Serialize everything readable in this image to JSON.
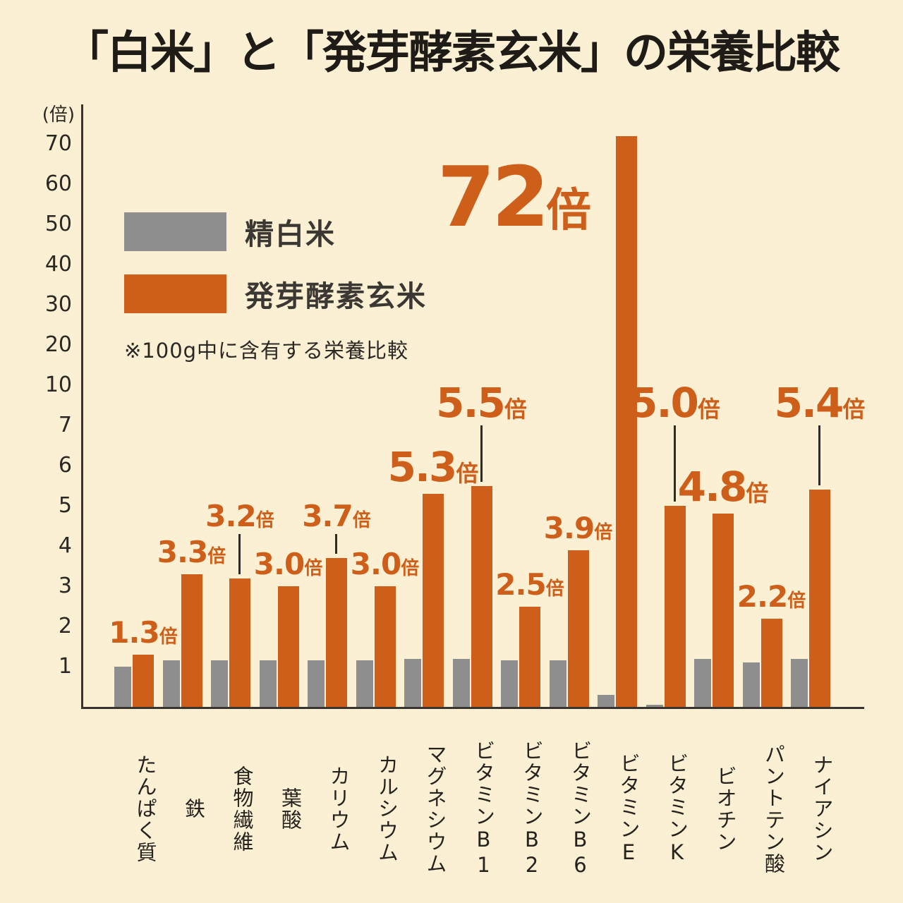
{
  "page": {
    "title": "「白米」と「発芽酵素玄米」の栄養比較"
  },
  "y_axis": {
    "unit_label": "(倍)"
  },
  "legend": {
    "series1": "精白米",
    "series2": "発芽酵素玄米",
    "note": "※100g中に含有する栄養比較"
  },
  "colors": {
    "background": "#fbf0d3",
    "orange": "#ce5f1a",
    "gray": "#8e8e8e",
    "text": "#26221e",
    "axis": "#39342f"
  },
  "chart_data": {
    "type": "bar",
    "title": "「白米」と「発芽酵素玄米」の栄養比較",
    "subtitle": "※100g中に含有する栄養比較",
    "unit": "倍",
    "ylabel": "(倍)",
    "scale": "piecewise: 1-7 linear, 10-70 compressed",
    "ylim": [
      0,
      75
    ],
    "grid": false,
    "legend_position": "upper-left",
    "y_ticks": [
      1,
      2,
      3,
      4,
      5,
      6,
      7,
      10,
      20,
      30,
      40,
      50,
      60,
      70
    ],
    "categories": [
      "たんぱく質",
      "鉄",
      "食物繊維",
      "葉酸",
      "カリウム",
      "カルシウム",
      "マグネシウム",
      "ビタミンB1",
      "ビタミンB2",
      "ビタミンB6",
      "ビタミンE",
      "ビタミンK",
      "ビオチン",
      "パントテン酸",
      "ナイアシン"
    ],
    "series": [
      {
        "name": "精白米",
        "values": [
          1.0,
          1.15,
          1.15,
          1.15,
          1.15,
          1.15,
          1.2,
          1.2,
          1.15,
          1.15,
          0.3,
          0.05,
          1.2,
          1.1,
          1.2
        ]
      },
      {
        "name": "発芽酵素玄米",
        "values": [
          1.3,
          3.3,
          3.2,
          3.0,
          3.7,
          3.0,
          5.3,
          5.5,
          2.5,
          3.9,
          72,
          5.0,
          4.8,
          2.2,
          5.4
        ]
      }
    ],
    "bars": [
      {
        "category": "たんぱく質",
        "white": 1.0,
        "brown": 1.3,
        "label": "1.3",
        "size": "normal",
        "label_value": null,
        "leader": false
      },
      {
        "category": "鉄",
        "white": 1.15,
        "brown": 3.3,
        "label": "3.3",
        "size": "normal",
        "label_value": null,
        "leader": false
      },
      {
        "category": "食物繊維",
        "white": 1.15,
        "brown": 3.2,
        "label": "3.2",
        "size": "normal",
        "label_value": 4.2,
        "leader": true
      },
      {
        "category": "葉酸",
        "white": 1.15,
        "brown": 3.0,
        "label": "3.0",
        "size": "normal",
        "label_value": null,
        "leader": false
      },
      {
        "category": "カリウム",
        "white": 1.15,
        "brown": 3.7,
        "label": "3.7",
        "size": "normal",
        "label_value": 4.2,
        "leader": true
      },
      {
        "category": "カルシウム",
        "white": 1.15,
        "brown": 3.0,
        "label": "3.0",
        "size": "normal",
        "label_value": null,
        "leader": false
      },
      {
        "category": "マグネシウム",
        "white": 1.2,
        "brown": 5.3,
        "label": "5.3",
        "size": "large",
        "label_value": null,
        "leader": false
      },
      {
        "category": "ビタミンB1",
        "white": 1.2,
        "brown": 5.5,
        "label": "5.5",
        "size": "large",
        "label_value": 6.9,
        "leader": true
      },
      {
        "category": "ビタミンB2",
        "white": 1.15,
        "brown": 2.5,
        "label": "2.5",
        "size": "normal",
        "label_value": null,
        "leader": false
      },
      {
        "category": "ビタミンB6",
        "white": 1.15,
        "brown": 3.9,
        "label": "3.9",
        "size": "normal",
        "label_value": null,
        "leader": false
      },
      {
        "category": "ビタミンE",
        "white": 0.3,
        "brown": 72,
        "label": "72",
        "size": "huge",
        "label_value": 47.5,
        "leader": false
      },
      {
        "category": "ビタミンK",
        "white": 0.05,
        "brown": 5.0,
        "label": "5.0",
        "size": "large",
        "label_value": 6.9,
        "leader": true
      },
      {
        "category": "ビオチン",
        "white": 1.2,
        "brown": 4.8,
        "label": "4.8",
        "size": "large",
        "label_value": null,
        "leader": false
      },
      {
        "category": "パントテン酸",
        "white": 1.1,
        "brown": 2.2,
        "label": "2.2",
        "size": "normal",
        "label_value": null,
        "leader": false
      },
      {
        "category": "ナイアシン",
        "white": 1.2,
        "brown": 5.4,
        "label": "5.4",
        "size": "large",
        "label_value": 6.9,
        "leader": true
      }
    ]
  }
}
